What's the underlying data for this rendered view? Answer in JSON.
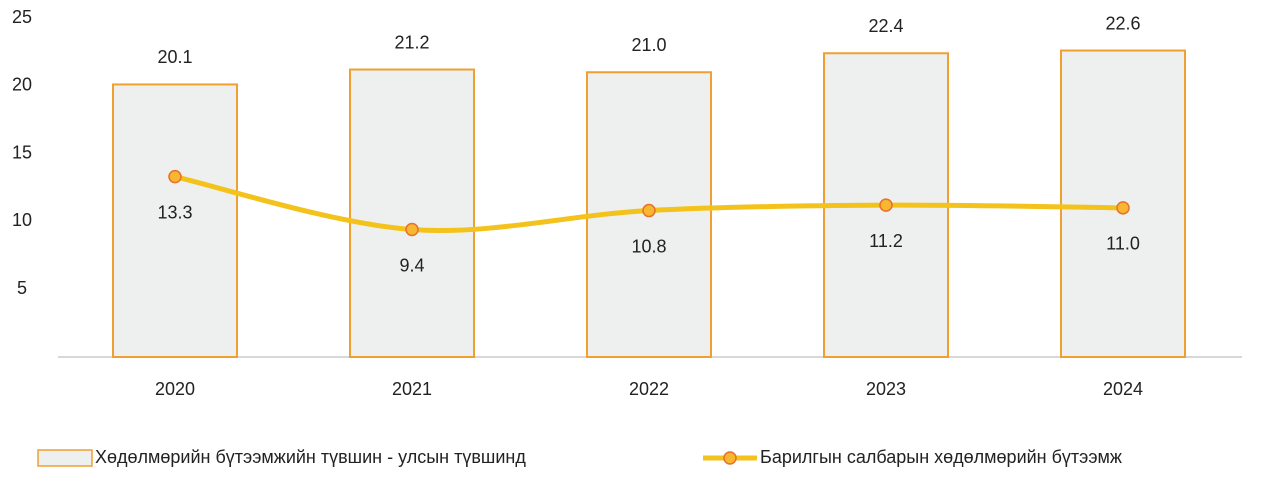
{
  "chart_data": {
    "type": "bar-line",
    "categories": [
      "2020",
      "2021",
      "2022",
      "2023",
      "2024"
    ],
    "series": [
      {
        "name": "Хөдөлмөрийн бүтээмжийн түвшин - улсын түвшинд",
        "type": "bar",
        "color": "#eef0ef",
        "edge_color": "#f0a030",
        "values": [
          20.1,
          21.2,
          21.0,
          22.4,
          22.6
        ],
        "value_labels": [
          "20.1",
          "21.2",
          "21.0",
          "22.4",
          "22.6"
        ]
      },
      {
        "name": "Барилгын салбарын хөдөлмөрийн бүтээмж",
        "type": "line",
        "color": "#f3c21b",
        "marker_color": "#f7b731",
        "marker_edge": "#e8702a",
        "values": [
          13.3,
          9.4,
          10.8,
          11.2,
          11.0
        ],
        "value_labels": [
          "13.3",
          "9.4",
          "10.8",
          "11.2",
          "11.0"
        ]
      }
    ],
    "ylim": [
      0,
      25
    ],
    "yticks": [
      5,
      10,
      15,
      20,
      25
    ],
    "grid": false,
    "legend": "bottom"
  }
}
